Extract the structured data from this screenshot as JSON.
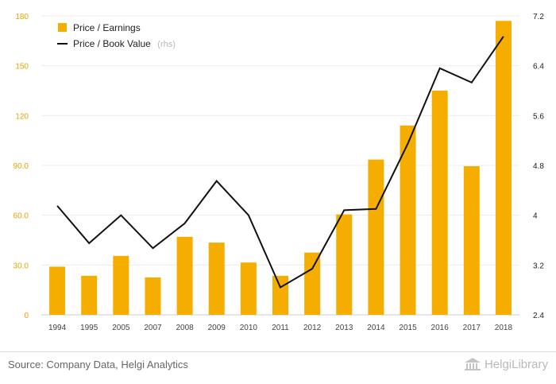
{
  "chart_data": {
    "type": "bar+line",
    "categories": [
      "1994",
      "1995",
      "2005",
      "2007",
      "2008",
      "2009",
      "2010",
      "2011",
      "2012",
      "2013",
      "2014",
      "2015",
      "2016",
      "2017",
      "2018"
    ],
    "series": [
      {
        "name": "Price / Earnings",
        "type": "bar",
        "axis": "left",
        "color": "#f5ad00",
        "values": [
          29,
          23.5,
          35.5,
          22.5,
          47,
          43.5,
          31.5,
          23.5,
          37.5,
          60.5,
          93.5,
          114,
          135,
          89.5,
          177
        ]
      },
      {
        "name": "Price / Book Value",
        "name_suffix": "(rhs)",
        "type": "line",
        "axis": "right",
        "color": "#111111",
        "values": [
          4.15,
          3.55,
          4.0,
          3.47,
          3.87,
          4.55,
          4.0,
          2.84,
          3.14,
          4.08,
          4.1,
          5.15,
          6.36,
          6.13,
          6.87
        ]
      }
    ],
    "y_left": {
      "min": 0,
      "max": 180,
      "ticks": [
        "0",
        "30.0",
        "60.0",
        "90.0",
        "120",
        "150",
        "180"
      ]
    },
    "y_right": {
      "min": 2.4,
      "max": 7.2,
      "ticks": [
        "2.4",
        "3.2",
        "4",
        "4.8",
        "5.6",
        "6.4",
        "7.2"
      ]
    },
    "grid": true,
    "legend": "top-left"
  },
  "footer": {
    "source": "Source: Company Data, Helgi Analytics",
    "logo_text": "HelgiLibrary"
  }
}
